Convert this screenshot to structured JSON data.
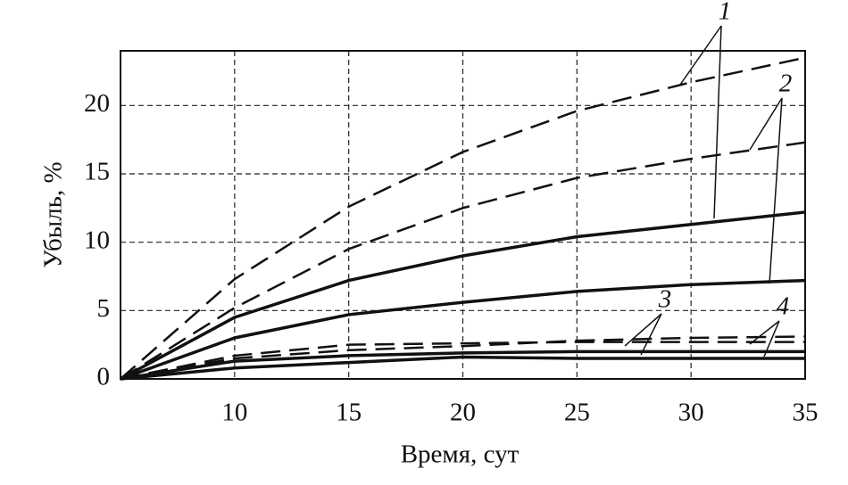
{
  "chart_data": {
    "type": "line",
    "x": [
      5,
      10,
      15,
      20,
      25,
      30,
      35
    ],
    "series": [
      {
        "color": "#111111",
        "dashed": true,
        "values": [
          0,
          7.3,
          12.6,
          16.6,
          19.6,
          21.7,
          23.5
        ]
      },
      {
        "color": "#111111",
        "dashed": true,
        "values": [
          0,
          5.2,
          9.5,
          12.5,
          14.7,
          16.1,
          17.3
        ]
      },
      {
        "color": "#111111",
        "dashed": false,
        "values": [
          0,
          4.5,
          7.2,
          9.0,
          10.4,
          11.3,
          12.2
        ]
      },
      {
        "color": "#111111",
        "dashed": false,
        "values": [
          0,
          3.0,
          4.7,
          5.6,
          6.4,
          6.9,
          7.2
        ]
      },
      {
        "color": "#111111",
        "dashed": true,
        "values": [
          0,
          1.7,
          2.5,
          2.6,
          2.7,
          2.7,
          2.7
        ]
      },
      {
        "color": "#111111",
        "dashed": true,
        "values": [
          0,
          1.5,
          2.1,
          2.4,
          2.8,
          3.0,
          3.1
        ]
      },
      {
        "color": "#111111",
        "dashed": false,
        "values": [
          0,
          1.3,
          1.7,
          1.9,
          2.0,
          2.0,
          2.0
        ]
      },
      {
        "color": "#111111",
        "dashed": false,
        "values": [
          0,
          0.8,
          1.2,
          1.6,
          1.5,
          1.5,
          1.5
        ]
      }
    ],
    "annotations": [
      "1",
      "2",
      "3",
      "4"
    ],
    "xlabel": "Время,  сут",
    "ylabel": "Убыль,  %",
    "xlim": [
      5,
      35
    ],
    "xticks": [
      10,
      15,
      20,
      25,
      30,
      35
    ],
    "ylim": [
      0,
      24
    ],
    "yticks": [
      0,
      5,
      10,
      15,
      20
    ],
    "grid": true
  }
}
